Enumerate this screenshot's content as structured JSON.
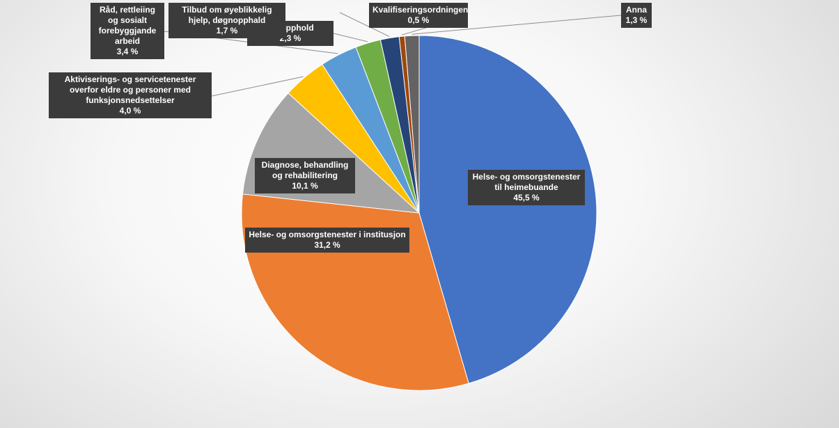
{
  "chart_data": {
    "type": "pie",
    "title": "",
    "start_angle_deg": 0,
    "direction": "clockwise",
    "legend": "none",
    "slices": [
      {
        "label": "Helse- og omsorgstenester til heimebuande",
        "value_label": "45,5 %",
        "value": 45.5,
        "color": "#4472C4"
      },
      {
        "label": "Helse- og omsorgstenester i institusjon",
        "value_label": "31,2 %",
        "value": 31.2,
        "color": "#ED7D31"
      },
      {
        "label": "Diagnose, behandling og rehabilitering",
        "value_label": "10,1 %",
        "value": 10.1,
        "color": "#A5A5A5"
      },
      {
        "label": "Aktiviserings- og servicetenester overfor eldre og personer med funksjonsnedsettelser",
        "value_label": "4,0 %",
        "value": 4.0,
        "color": "#FFC000"
      },
      {
        "label": "Råd, rettleiing og sosialt forebyggjande arbeid",
        "value_label": "3,4 %",
        "value": 3.4,
        "color": "#5B9BD5"
      },
      {
        "label": "livsopphold",
        "value_label": "2,3 %",
        "value": 2.3,
        "color": "#70AD47"
      },
      {
        "label": "Tilbud om øyeblikkelig hjelp, døgnopphald",
        "value_label": "1,7 %",
        "value": 1.7,
        "color": "#264478"
      },
      {
        "label": "Kvalifiseringsordningen",
        "value_label": "0,5 %",
        "value": 0.5,
        "color": "#9E480E"
      },
      {
        "label": "Anna",
        "value_label": "1,3 %",
        "value": 1.3,
        "color": "#636363"
      }
    ]
  }
}
